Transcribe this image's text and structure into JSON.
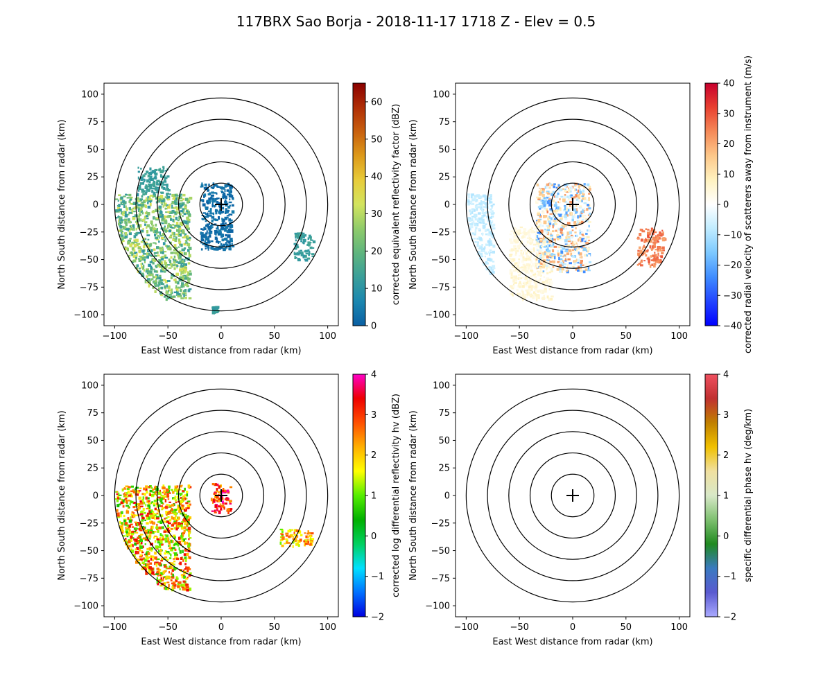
{
  "suptitle": "117BRX Sao Borja - 2018-11-17 1718 Z -  Elev = 0.5",
  "chart_data": [
    {
      "type": "heatmap",
      "name": "reflectivity",
      "xlabel": "East West distance from radar (km)",
      "ylabel": "North South distance from radar (km)",
      "xlim": [
        -110,
        110
      ],
      "ylim": [
        -110,
        110
      ],
      "xticks": [
        -100,
        -50,
        0,
        50,
        100
      ],
      "yticks": [
        -100,
        -75,
        -50,
        -25,
        0,
        25,
        50,
        75,
        100
      ],
      "range_rings_km": [
        20,
        40,
        60,
        80,
        100
      ],
      "colorbar": {
        "label": "corrected equivalent reflectivity factor (dBZ)",
        "vmin": 0,
        "vmax": 65,
        "ticks": [
          0,
          10,
          20,
          30,
          40,
          50,
          60
        ],
        "colors": [
          "#0a5fa3",
          "#1b87b0",
          "#3a9f9a",
          "#5fb57e",
          "#8fcb6a",
          "#d3e45e",
          "#e8cc3a",
          "#dd9a1a",
          "#c8600e",
          "#b02e06",
          "#8a0000"
        ]
      },
      "echo_regions": [
        {
          "area": "western arc",
          "x_range": [
            -100,
            -30
          ],
          "y_range": [
            -85,
            10
          ],
          "value_range": [
            10,
            35
          ]
        },
        {
          "area": "radar center clutter",
          "x_range": [
            -20,
            10
          ],
          "y_range": [
            -40,
            20
          ],
          "value_range": [
            0,
            5
          ]
        },
        {
          "area": "eastern cell",
          "x_range": [
            68,
            86
          ],
          "y_range": [
            -50,
            -25
          ],
          "value_range": [
            10,
            15
          ]
        },
        {
          "area": "north-west scattered",
          "x_range": [
            -80,
            -50
          ],
          "y_range": [
            10,
            35
          ],
          "value_range": [
            10,
            15
          ]
        },
        {
          "area": "south speck",
          "x_range": [
            -9,
            -4
          ],
          "y_range": [
            -97,
            -92
          ],
          "value_range": [
            10,
            15
          ]
        }
      ]
    },
    {
      "type": "heatmap",
      "name": "velocity",
      "xlabel": "East West distance from radar (km)",
      "ylabel": "North South distance from radar (km)",
      "xlim": [
        -110,
        110
      ],
      "ylim": [
        -110,
        110
      ],
      "xticks": [
        -100,
        -50,
        0,
        50,
        100
      ],
      "yticks": [
        -100,
        -75,
        -50,
        -25,
        0,
        25,
        50,
        75,
        100
      ],
      "range_rings_km": [
        20,
        40,
        60,
        80,
        100
      ],
      "colorbar": {
        "label": "corrected radial velocity of scatterers away from instrument (m/s)",
        "vmin": -40,
        "vmax": 40,
        "ticks": [
          -40,
          -30,
          -20,
          -10,
          0,
          10,
          20,
          30,
          40
        ],
        "colors": [
          "#0000ff",
          "#2244ff",
          "#3f8cff",
          "#7cc8ff",
          "#c0ecff",
          "#ffffff",
          "#fff2c0",
          "#fdc88a",
          "#f58a58",
          "#e84030",
          "#c8002e"
        ]
      },
      "echo_regions": [
        {
          "area": "western arc",
          "x_range": [
            -100,
            -75
          ],
          "y_range": [
            -80,
            10
          ],
          "value_range": [
            -10,
            -5
          ]
        },
        {
          "area": "south-west band",
          "x_range": [
            -60,
            -20
          ],
          "y_range": [
            -85,
            -20
          ],
          "value_range": [
            2,
            8
          ]
        },
        {
          "area": "eastern cell",
          "x_range": [
            60,
            85
          ],
          "y_range": [
            -55,
            -20
          ],
          "value_range": [
            20,
            30
          ]
        },
        {
          "area": "center clutter",
          "x_range": [
            -35,
            15
          ],
          "y_range": [
            -60,
            20
          ],
          "value_range": [
            -25,
            25
          ]
        }
      ]
    },
    {
      "type": "heatmap",
      "name": "differential_reflectivity",
      "xlabel": "East West distance from radar (km)",
      "ylabel": "North South distance from radar (km)",
      "xlim": [
        -110,
        110
      ],
      "ylim": [
        -110,
        110
      ],
      "xticks": [
        -100,
        -50,
        0,
        50,
        100
      ],
      "yticks": [
        -100,
        -75,
        -50,
        -25,
        0,
        25,
        50,
        75,
        100
      ],
      "range_rings_km": [
        20,
        40,
        60,
        80,
        100
      ],
      "colorbar": {
        "label": "corrected log differential reflectivity hv (dBZ)",
        "vmin": -2,
        "vmax": 4,
        "ticks": [
          -2,
          -1,
          0,
          1,
          2,
          3,
          4
        ],
        "colors": [
          "#0000e0",
          "#0070ff",
          "#00e0ff",
          "#00d060",
          "#00b000",
          "#55ee00",
          "#ffff00",
          "#ffb000",
          "#ff5000",
          "#ee0000",
          "#ff00c8"
        ]
      },
      "echo_regions": [
        {
          "area": "western arc",
          "x_range": [
            -100,
            -30
          ],
          "y_range": [
            -85,
            10
          ],
          "value_range": [
            0.5,
            3.5
          ]
        },
        {
          "area": "center clutter",
          "x_range": [
            -10,
            8
          ],
          "y_range": [
            -15,
            12
          ],
          "value_range": [
            2,
            4
          ]
        },
        {
          "area": "eastern specks",
          "x_range": [
            55,
            85
          ],
          "y_range": [
            -45,
            -30
          ],
          "value_range": [
            1,
            3
          ]
        }
      ]
    },
    {
      "type": "heatmap",
      "name": "specific_differential_phase",
      "xlabel": "East West distance from radar (km)",
      "ylabel": "North South distance from radar (km)",
      "xlim": [
        -110,
        110
      ],
      "ylim": [
        -110,
        110
      ],
      "xticks": [
        -100,
        -50,
        0,
        50,
        100
      ],
      "yticks": [
        -100,
        -75,
        -50,
        -25,
        0,
        25,
        50,
        75,
        100
      ],
      "range_rings_km": [
        20,
        40,
        60,
        80,
        100
      ],
      "colorbar": {
        "label": "specific differential phase hv (deg/km)",
        "vmin": -2,
        "vmax": 4,
        "ticks": [
          -2,
          -1,
          0,
          1,
          2,
          3,
          4
        ],
        "colors": [
          "#aaaaff",
          "#5a5ad0",
          "#3a7ac0",
          "#208a20",
          "#7ec070",
          "#d8e8c8",
          "#f0e0a0",
          "#f0c000",
          "#c08000",
          "#c03030",
          "#f05060"
        ]
      },
      "echo_regions": []
    }
  ]
}
